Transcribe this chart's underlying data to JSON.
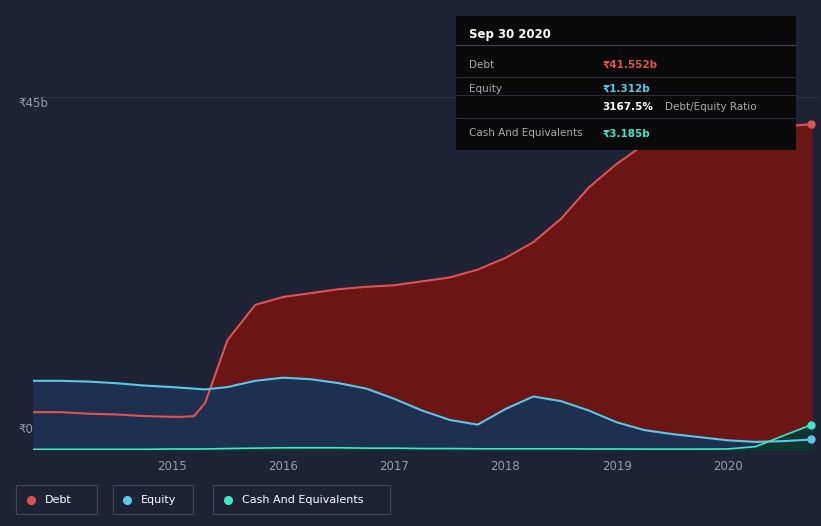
{
  "background_color": "#1e2335",
  "tooltip_bg": "#0a0a0a",
  "title_box": {
    "date": "Sep 30 2020",
    "rows": [
      {
        "label": "Debt",
        "value": "₹41.552b",
        "value_color": "#e05252"
      },
      {
        "label": "Equity",
        "value": "₹1.312b",
        "value_color": "#5bc8e8"
      },
      {
        "label": "",
        "value": "3167.5% Debt/Equity Ratio",
        "value_color": "#ffffff"
      },
      {
        "label": "Cash And Equivalents",
        "value": "₹3.185b",
        "value_color": "#3de8c8"
      }
    ]
  },
  "ylabel_45b": "₹45b",
  "ylabel_0": "₹0",
  "x_ticks": [
    2015,
    2016,
    2017,
    2018,
    2019,
    2020
  ],
  "ylim": [
    0,
    45
  ],
  "debt_color": "#e05252",
  "debt_fill": "#6b1515",
  "equity_color": "#5bc8e8",
  "equity_fill": "#1e3050",
  "cash_color": "#3de8c8",
  "cash_fill": "#0f3530",
  "legend": [
    {
      "label": "Debt",
      "color": "#e05252"
    },
    {
      "label": "Equity",
      "color": "#5bc8e8"
    },
    {
      "label": "Cash And Equivalents",
      "color": "#3de8c8"
    }
  ],
  "time": [
    2013.75,
    2014.0,
    2014.25,
    2014.5,
    2014.75,
    2015.0,
    2015.1,
    2015.2,
    2015.3,
    2015.5,
    2015.75,
    2016.0,
    2016.25,
    2016.5,
    2016.75,
    2017.0,
    2017.25,
    2017.5,
    2017.75,
    2018.0,
    2018.25,
    2018.5,
    2018.75,
    2019.0,
    2019.25,
    2019.5,
    2019.75,
    2020.0,
    2020.25,
    2020.5,
    2020.75
  ],
  "debt": [
    4.8,
    4.8,
    4.6,
    4.5,
    4.3,
    4.2,
    4.2,
    4.3,
    6.0,
    14.0,
    18.5,
    19.5,
    20.0,
    20.5,
    20.8,
    21.0,
    21.5,
    22.0,
    23.0,
    24.5,
    26.5,
    29.5,
    33.5,
    36.5,
    39.0,
    40.0,
    40.5,
    40.8,
    41.0,
    41.3,
    41.552
  ],
  "equity": [
    8.8,
    8.8,
    8.7,
    8.5,
    8.2,
    8.0,
    7.9,
    7.8,
    7.7,
    8.0,
    8.8,
    9.2,
    9.0,
    8.5,
    7.8,
    6.5,
    5.0,
    3.8,
    3.2,
    5.2,
    6.8,
    6.2,
    5.0,
    3.5,
    2.5,
    2.0,
    1.6,
    1.2,
    1.0,
    1.1,
    1.312
  ],
  "cash": [
    0.05,
    0.05,
    0.05,
    0.05,
    0.05,
    0.1,
    0.1,
    0.1,
    0.1,
    0.15,
    0.2,
    0.25,
    0.25,
    0.25,
    0.2,
    0.2,
    0.15,
    0.15,
    0.12,
    0.12,
    0.12,
    0.12,
    0.1,
    0.1,
    0.08,
    0.08,
    0.08,
    0.1,
    0.4,
    1.8,
    3.185
  ]
}
